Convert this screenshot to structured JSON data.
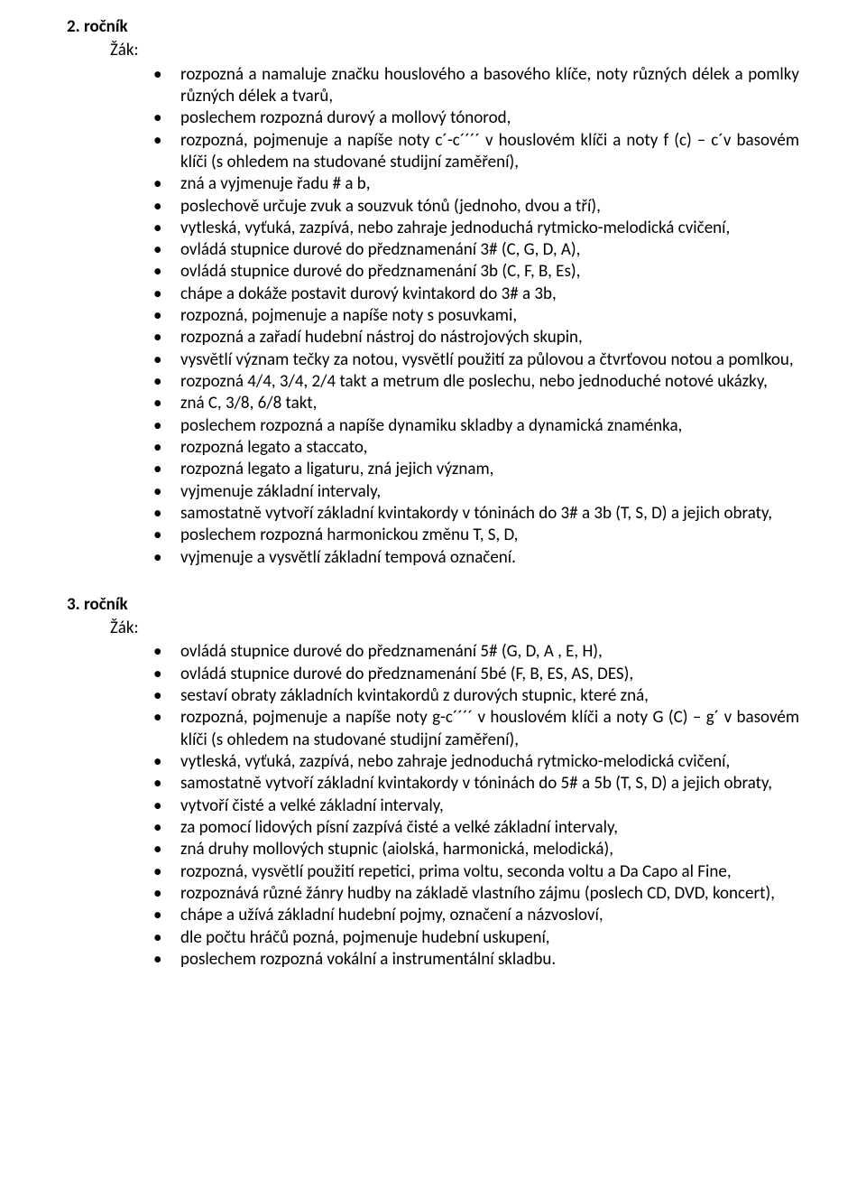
{
  "sections": [
    {
      "heading": "2. ročník",
      "zak": "Žák:",
      "items": [
        "rozpozná a namaluje značku houslového a basového klíče, noty různých délek a pomlky různých délek a tvarů,",
        "poslechem rozpozná durový a mollový tónorod,",
        "rozpozná, pojmenuje a napíše noty c´-c´´´´ v houslovém klíči a noty f (c) – c´v basovém klíči (s ohledem na studované studijní zaměření),",
        "zná a vyjmenuje řadu # a b,",
        "poslechově určuje zvuk a souzvuk tónů (jednoho, dvou a tří),",
        "vytleská, vyťuká, zazpívá, nebo zahraje jednoduchá rytmicko-melodická cvičení,",
        "ovládá stupnice durové do předznamenání 3# (C, G, D, A),",
        "ovládá stupnice durové do předznamenání 3b (C, F, B, Es),",
        "chápe a dokáže postavit durový kvintakord do 3# a 3b,",
        "rozpozná, pojmenuje a napíše noty s posuvkami,",
        "rozpozná a zařadí hudební nástroj do nástrojových skupin,",
        "vysvětlí význam tečky za notou, vysvětlí použití za půlovou a čtvrťovou notou a pomlkou,",
        "rozpozná  4/4, 3/4, 2/4 takt a metrum dle poslechu, nebo jednoduché notové ukázky,",
        "zná C, 3/8, 6/8 takt,",
        "poslechem rozpozná a napíše dynamiku skladby a dynamická znaménka,",
        "rozpozná legato a staccato,",
        "rozpozná legato a ligaturu, zná jejich význam,",
        "vyjmenuje základní intervaly,",
        "samostatně vytvoří základní kvintakordy v tóninách do 3# a 3b (T, S, D) a jejich obraty,",
        "poslechem rozpozná harmonickou změnu T, S, D,",
        "vyjmenuje a vysvětlí základní tempová označení."
      ]
    },
    {
      "heading": "3. ročník",
      "zak": "Žák:",
      "items": [
        "ovládá stupnice durové do předznamenání 5# (G, D,  A , E, H),",
        "ovládá stupnice durové do předznamenání 5bé (F, B, ES, AS, DES),",
        "sestaví obraty základních kvintakordů z durových stupnic, které zná,",
        "rozpozná, pojmenuje a napíše noty g-c´´´´ v houslovém klíči a noty G (C) – g´ v basovém klíči (s ohledem na studované studijní zaměření),",
        "vytleská, vyťuká, zazpívá, nebo zahraje jednoduchá rytmicko-melodická cvičení,",
        "samostatně vytvoří základní kvintakordy v tóninách do 5# a 5b (T, S, D) a jejich obraty,",
        "vytvoří čisté a velké základní intervaly,",
        "za pomocí lidových písní zazpívá čisté a velké základní intervaly,",
        "zná druhy mollových stupnic (aiolská, harmonická, melodická),",
        "rozpozná, vysvětlí použití repetici, prima voltu, seconda voltu a Da Capo al Fine,",
        "rozpoznává různé žánry hudby na základě vlastního zájmu (poslech CD, DVD, koncert),",
        "chápe a užívá základní hudební pojmy, označení a názvosloví,",
        "dle počtu hráčů pozná, pojmenuje hudební uskupení,",
        "poslechem rozpozná vokální a instrumentální skladbu."
      ]
    }
  ]
}
